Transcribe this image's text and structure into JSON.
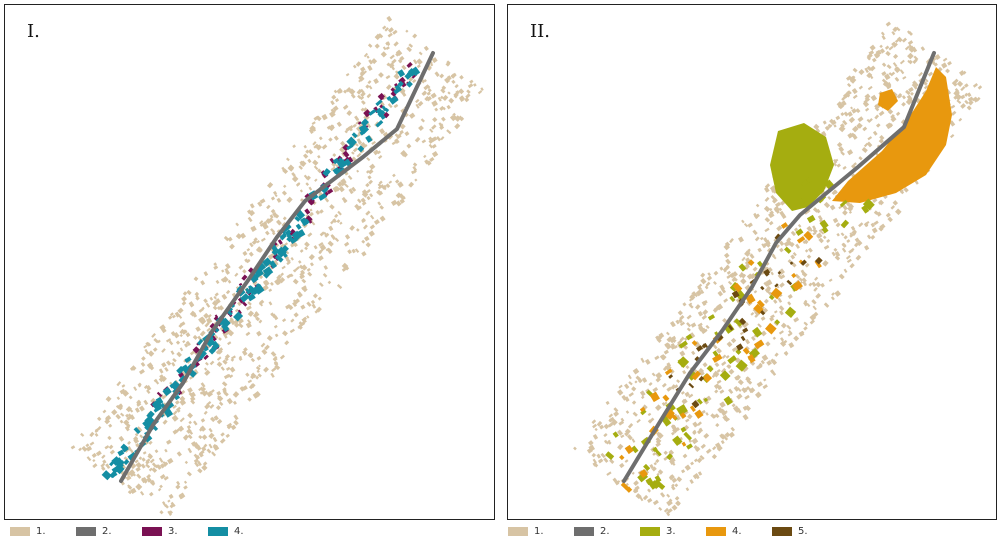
{
  "panels": [
    {
      "label": "I."
    },
    {
      "label": "II."
    }
  ],
  "legend_left": [
    {
      "label": "1.",
      "color": "#d7c4a4"
    },
    {
      "label": "2.",
      "color": "#6e6e6e"
    },
    {
      "label": "3.",
      "color": "#7a1153"
    },
    {
      "label": "4.",
      "color": "#148ea3"
    }
  ],
  "legend_right": [
    {
      "label": "1.",
      "color": "#d7c4a4"
    },
    {
      "label": "2.",
      "color": "#6e6e6e"
    },
    {
      "label": "3.",
      "color": "#a5ad10"
    },
    {
      "label": "4.",
      "color": "#e8980e"
    },
    {
      "label": "5.",
      "color": "#6b4a12"
    }
  ]
}
